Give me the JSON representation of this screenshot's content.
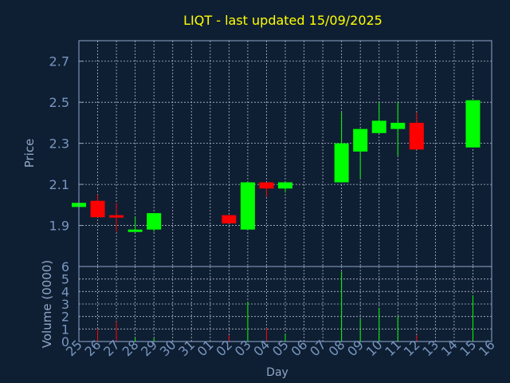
{
  "chart_data": {
    "type": "candlestick",
    "title": "LIQT - last updated 15/09/2025",
    "xlabel": "Day",
    "price_axis": {
      "ylabel": "Price",
      "ylim": [
        1.7,
        2.8
      ],
      "ticks": [
        1.9,
        2.1,
        2.3,
        2.5,
        2.7
      ],
      "tick_labels": [
        "1.9",
        "2.1",
        "2.3",
        "2.5",
        "2.7"
      ]
    },
    "volume_axis": {
      "ylabel": "Volume (0000)",
      "ylim": [
        0,
        6
      ],
      "ticks": [
        0,
        1,
        2,
        3,
        4,
        5,
        6
      ],
      "tick_labels": [
        "0",
        "1",
        "2",
        "3",
        "4",
        "5",
        "6"
      ]
    },
    "day_labels": [
      "25",
      "26",
      "27",
      "28",
      "29",
      "30",
      "31",
      "01",
      "02",
      "03",
      "04",
      "05",
      "06",
      "07",
      "08",
      "09",
      "10",
      "11",
      "12",
      "13",
      "14",
      "15",
      "16"
    ],
    "grid": true,
    "candles": [
      {
        "day": "25",
        "open": 1.99,
        "close": 2.01,
        "high": 2.01,
        "low": 1.99,
        "volume": 0.1
      },
      {
        "day": "26",
        "open": 2.02,
        "close": 1.94,
        "high": 2.05,
        "low": 1.94,
        "volume": 1.0
      },
      {
        "day": "27",
        "open": 1.95,
        "close": 1.94,
        "high": 2.01,
        "low": 1.87,
        "volume": 1.6
      },
      {
        "day": "28",
        "open": 1.87,
        "close": 1.88,
        "high": 1.94,
        "low": 1.87,
        "volume": 0.3
      },
      {
        "day": "29",
        "open": 1.88,
        "close": 1.96,
        "high": 1.96,
        "low": 1.87,
        "volume": 0.3
      },
      {
        "day": "02",
        "open": 1.95,
        "close": 1.91,
        "high": 1.95,
        "low": 1.91,
        "volume": 0.5
      },
      {
        "day": "03",
        "open": 1.88,
        "close": 2.11,
        "high": 2.11,
        "low": 1.88,
        "volume": 3.2
      },
      {
        "day": "04",
        "open": 2.11,
        "close": 2.08,
        "high": 2.11,
        "low": 2.04,
        "volume": 1.1
      },
      {
        "day": "05",
        "open": 2.08,
        "close": 2.11,
        "high": 2.11,
        "low": 2.06,
        "volume": 0.6
      },
      {
        "day": "08",
        "open": 2.11,
        "close": 2.3,
        "high": 2.45,
        "low": 2.11,
        "volume": 5.6
      },
      {
        "day": "09",
        "open": 2.26,
        "close": 2.37,
        "high": 2.37,
        "low": 2.13,
        "volume": 1.8
      },
      {
        "day": "10",
        "open": 2.35,
        "close": 2.41,
        "high": 2.5,
        "low": 2.35,
        "volume": 2.7
      },
      {
        "day": "11",
        "open": 2.37,
        "close": 2.4,
        "high": 2.5,
        "low": 2.24,
        "volume": 2.0
      },
      {
        "day": "12",
        "open": 2.4,
        "close": 2.27,
        "high": 2.45,
        "low": 2.27,
        "volume": 0.5
      },
      {
        "day": "15",
        "open": 2.28,
        "close": 2.51,
        "high": 2.51,
        "low": 2.28,
        "volume": 3.7
      }
    ],
    "colors": {
      "up": "#00ff00",
      "down": "#ff0000",
      "title": "#ffff00",
      "axis_text": "#8fa7c8",
      "tick_text": "#7896c0",
      "grid": "#cfd8e6",
      "frame": "#8fa7c8",
      "background": "#0f1f33"
    }
  }
}
